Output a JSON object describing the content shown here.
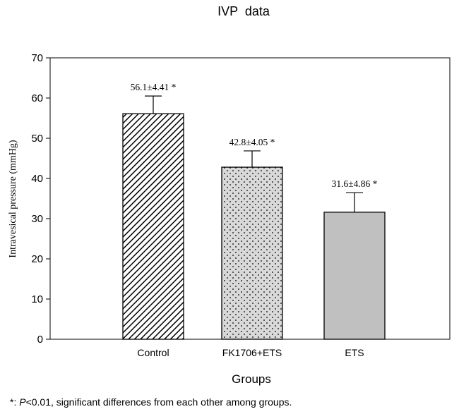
{
  "chart_data": {
    "type": "bar",
    "title": "IVP  data",
    "xlabel": "Groups",
    "ylabel": "Intravesical pressure (mmHg)",
    "ylim": [
      0,
      70
    ],
    "yticks": [
      0,
      10,
      20,
      30,
      40,
      50,
      60,
      70
    ],
    "categories": [
      "Control",
      "FK1706+ETS",
      "ETS"
    ],
    "values": [
      56.1,
      42.8,
      31.6
    ],
    "errors": [
      4.41,
      4.05,
      4.86
    ],
    "data_labels": [
      "56.1±4.41 *",
      "42.8±4.05 *",
      "31.6±4.86 *"
    ],
    "fills": [
      "diagonal-hatch",
      "dotted",
      "solid-gray"
    ],
    "colors": {
      "bar_gray": "#c0c0c0",
      "dot_bg": "#d9d9d9",
      "ink": "#000000"
    }
  },
  "footnote": {
    "symbol": "*:",
    "p_italic": "P",
    "rest": "<0.01, significant differences from each other among groups."
  }
}
